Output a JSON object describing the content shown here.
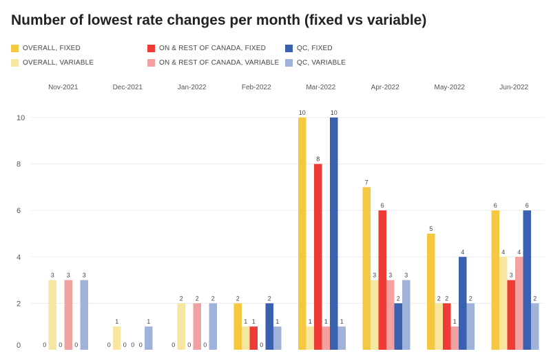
{
  "chart_data": {
    "type": "bar",
    "title": "Number of lowest rate changes per month (fixed vs variable)",
    "categories": [
      "Nov-2021",
      "Dec-2021",
      "Jan-2022",
      "Feb-2022",
      "Mar-2022",
      "Apr-2022",
      "May-2022",
      "Jun-2022"
    ],
    "series": [
      {
        "name": "OVERALL, FIXED",
        "color": "#F5C842",
        "values": [
          0,
          0,
          0,
          2,
          10,
          7,
          5,
          6
        ]
      },
      {
        "name": "OVERALL, VARIABLE",
        "color": "#F7E6A0",
        "values": [
          3,
          1,
          2,
          1,
          1,
          3,
          2,
          4
        ]
      },
      {
        "name": "ON & REST OF CANADA, FIXED",
        "color": "#EE3B36",
        "values": [
          0,
          0,
          0,
          1,
          8,
          6,
          2,
          3
        ]
      },
      {
        "name": "ON & REST OF CANADA, VARIABLE",
        "color": "#F2A0A0",
        "values": [
          3,
          0,
          2,
          0,
          1,
          3,
          1,
          4
        ]
      },
      {
        "name": "QC, FIXED",
        "color": "#3A60B0",
        "values": [
          0,
          0,
          0,
          2,
          10,
          2,
          4,
          6
        ]
      },
      {
        "name": "QC, VARIABLE",
        "color": "#9FB2DA",
        "values": [
          3,
          1,
          2,
          1,
          1,
          3,
          2,
          2
        ]
      }
    ],
    "yticks": [
      0,
      2,
      4,
      6,
      8,
      10
    ],
    "ylim": [
      0,
      10
    ],
    "xlabel": "",
    "ylabel": "",
    "legend_position": "top",
    "category_labels_position": "top",
    "grid": true,
    "data_labels": true
  }
}
